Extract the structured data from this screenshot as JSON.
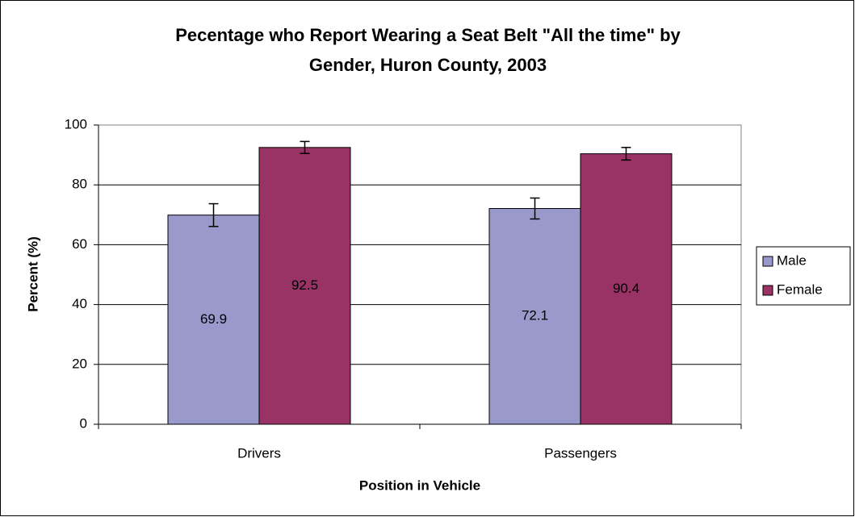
{
  "chart_data": {
    "type": "bar",
    "title": [
      "Pecentage who Report Wearing a Seat Belt \"All the time\" by",
      "Gender, Huron County, 2003"
    ],
    "x_label": "Position in Vehicle",
    "y_label": "Percent (%)",
    "categories": [
      "Drivers",
      "Passengers"
    ],
    "series": [
      {
        "name": "Male",
        "color": "#9999cc",
        "values": [
          69.9,
          72.1
        ],
        "errors": [
          3.8,
          3.5
        ]
      },
      {
        "name": "Female",
        "color": "#993366",
        "values": [
          92.5,
          90.4
        ],
        "errors": [
          2,
          2.1
        ]
      }
    ],
    "ylim": [
      0,
      100
    ],
    "yticks": [
      0,
      20,
      40,
      60,
      80,
      100
    ],
    "grid": true,
    "legend": "right"
  }
}
